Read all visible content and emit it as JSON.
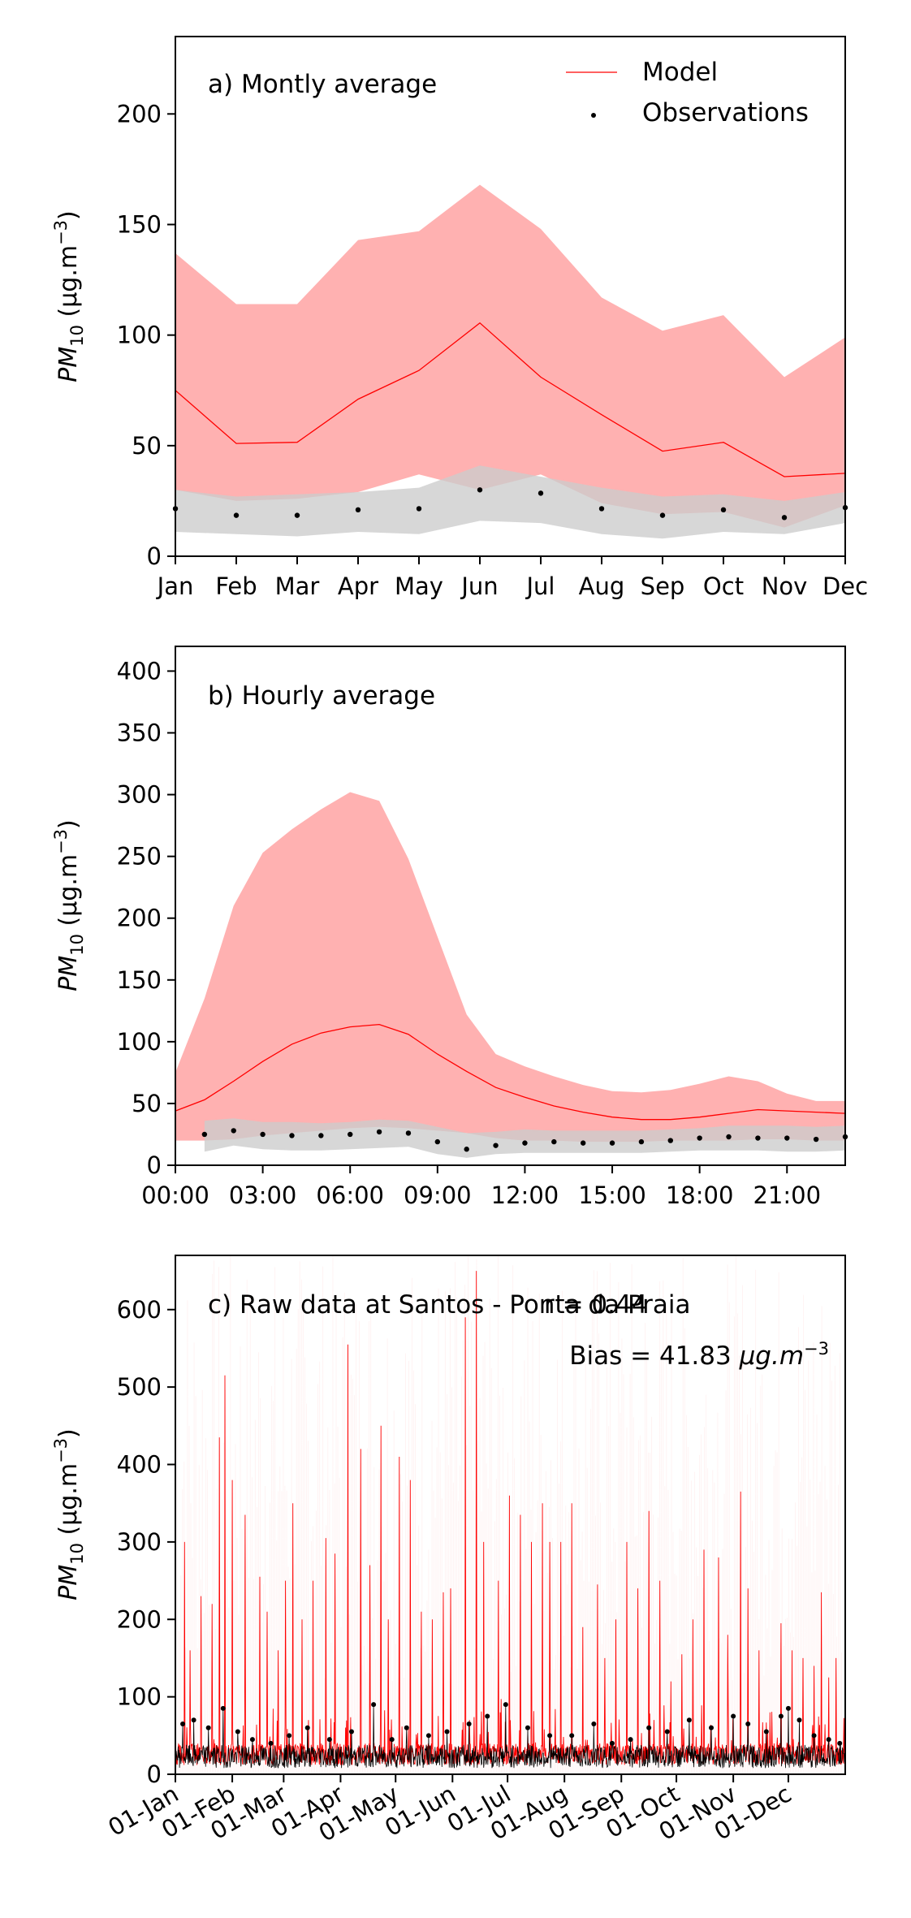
{
  "chart_data": [
    {
      "type": "line",
      "panel_label": "a) Montly average",
      "ylabel_main": "PM",
      "ylabel_sub": "10",
      "ylabel_units": " (μg.m",
      "ylabel_exp": "−3",
      "ylabel_close": ")",
      "legend_position": "top-right",
      "legend": [
        {
          "label": "Model",
          "color": "#ff0000",
          "kind": "line"
        },
        {
          "label": "Observations",
          "color": "#000000",
          "kind": "dot"
        }
      ],
      "categories": [
        "Jan",
        "Feb",
        "Mar",
        "Apr",
        "May",
        "Jun",
        "Jul",
        "Aug",
        "Sep",
        "Oct",
        "Nov",
        "Dec"
      ],
      "ylim": [
        0,
        235
      ],
      "yticks": [
        0,
        50,
        100,
        150,
        200
      ],
      "series": [
        {
          "name": "Model",
          "color": "#ff0000",
          "values": [
            75,
            51,
            51.5,
            71,
            84,
            105.5,
            81,
            64,
            47.5,
            51.5,
            36,
            37.5
          ],
          "band_upper": [
            137,
            114,
            114,
            143,
            147,
            168,
            148,
            117,
            102,
            109,
            81,
            99
          ],
          "band_lower": [
            30,
            25,
            26,
            29,
            37,
            30,
            37,
            24,
            19,
            20,
            13,
            23
          ]
        },
        {
          "name": "Observations",
          "color": "#000000",
          "values": [
            21.5,
            18.5,
            18.5,
            21,
            21.5,
            30,
            28.5,
            21.5,
            18.5,
            21,
            17.5,
            22
          ],
          "band_upper": [
            30,
            27,
            28,
            29,
            31,
            41,
            36,
            31,
            27,
            28,
            25,
            29
          ],
          "band_lower": [
            11,
            10,
            9,
            11,
            10,
            16,
            15,
            10,
            8,
            11,
            10,
            15
          ]
        }
      ]
    },
    {
      "type": "line",
      "panel_label": "b) Hourly average",
      "ylabel_main": "PM",
      "ylabel_sub": "10",
      "ylabel_units": " (μg.m",
      "ylabel_exp": "−3",
      "ylabel_close": ")",
      "x": [
        0,
        1,
        2,
        3,
        4,
        5,
        6,
        7,
        8,
        9,
        10,
        11,
        12,
        13,
        14,
        15,
        16,
        17,
        18,
        19,
        20,
        21,
        22,
        23
      ],
      "xlim": [
        0,
        23
      ],
      "xticks": [
        0,
        3,
        6,
        9,
        12,
        15,
        18,
        21
      ],
      "xticklabels": [
        "00:00",
        "03:00",
        "06:00",
        "09:00",
        "12:00",
        "15:00",
        "18:00",
        "21:00"
      ],
      "ylim": [
        0,
        420
      ],
      "yticks": [
        0,
        50,
        100,
        150,
        200,
        250,
        300,
        350,
        400
      ],
      "series": [
        {
          "name": "Model",
          "color": "#ff0000",
          "values": [
            44,
            53,
            68,
            84,
            98,
            107,
            112,
            114,
            106,
            90,
            76,
            63,
            55,
            48,
            43,
            39,
            37,
            37,
            39,
            42,
            45,
            44,
            43,
            42
          ],
          "band_upper": [
            75,
            135,
            210,
            253,
            272,
            288,
            302,
            295,
            248,
            185,
            122,
            90,
            80,
            72,
            65,
            60,
            59,
            61,
            66,
            72,
            68,
            58,
            52,
            52
          ],
          "band_lower": [
            20,
            20,
            21,
            24,
            26,
            28,
            30,
            31,
            30,
            28,
            26,
            22,
            20,
            20,
            19,
            19,
            19,
            20,
            20,
            20,
            21,
            21,
            20,
            20
          ]
        },
        {
          "name": "Observations",
          "color": "#000000",
          "values": [
            null,
            25,
            28,
            25,
            24,
            24,
            25,
            27,
            26,
            19,
            13,
            16,
            18,
            19,
            18,
            18,
            19,
            20,
            22,
            23,
            22,
            22,
            21,
            23
          ],
          "band_upper": [
            null,
            36,
            38,
            35,
            35,
            34,
            35,
            37,
            36,
            31,
            26,
            27,
            29,
            28,
            28,
            28,
            28,
            29,
            30,
            32,
            32,
            32,
            31,
            32
          ],
          "band_lower": [
            null,
            11,
            16,
            13,
            12,
            12,
            13,
            14,
            15,
            9,
            6,
            9,
            10,
            10,
            10,
            10,
            10,
            11,
            12,
            12,
            12,
            11,
            11,
            12
          ]
        }
      ]
    },
    {
      "type": "line",
      "panel_label": "c) Raw data at Santos - Ponta da Praia",
      "stat_r": "r = 0.44",
      "stat_bias_prefix": "Bias = 41.83 ",
      "stat_bias_units": "μg.m",
      "stat_bias_exp": "−3",
      "ylabel_main": "PM",
      "ylabel_sub": "10",
      "ylabel_units": " (μg.m",
      "ylabel_exp": "−3",
      "ylabel_close": ")",
      "xlim": [
        0,
        365
      ],
      "xticks": [
        0,
        31,
        59,
        90,
        120,
        151,
        181,
        212,
        243,
        273,
        304,
        334
      ],
      "xticklabels": [
        "01-Jan",
        "01-Feb",
        "01-Mar",
        "01-Apr",
        "01-May",
        "01-Jun",
        "01-Jul",
        "01-Aug",
        "01-Sep",
        "01-Oct",
        "01-Nov",
        "01-Dec"
      ],
      "ylim": [
        0,
        670
      ],
      "yticks": [
        0,
        100,
        200,
        300,
        400,
        500,
        600
      ],
      "series": [
        {
          "name": "Model",
          "color": "#ff0000",
          "peaks": [
            [
              5,
              300
            ],
            [
              8,
              160
            ],
            [
              14,
              230
            ],
            [
              20,
              220
            ],
            [
              24,
              435
            ],
            [
              27,
              515
            ],
            [
              31,
              380
            ],
            [
              38,
              335
            ],
            [
              46,
              255
            ],
            [
              50,
              210
            ],
            [
              56,
              160
            ],
            [
              60,
              250
            ],
            [
              64,
              350
            ],
            [
              69,
              200
            ],
            [
              75,
              250
            ],
            [
              82,
              305
            ],
            [
              87,
              285
            ],
            [
              94,
              555
            ],
            [
              101,
              420
            ],
            [
              106,
              270
            ],
            [
              112,
              450
            ],
            [
              116,
              200
            ],
            [
              122,
              410
            ],
            [
              128,
              380
            ],
            [
              134,
              210
            ],
            [
              140,
              200
            ],
            [
              146,
              235
            ],
            [
              150,
              240
            ],
            [
              158,
              590
            ],
            [
              164,
              650
            ],
            [
              168,
              300
            ],
            [
              176,
              250
            ],
            [
              182,
              360
            ],
            [
              188,
              335
            ],
            [
              194,
              300
            ],
            [
              200,
              350
            ],
            [
              204,
              300
            ],
            [
              210,
              300
            ],
            [
              216,
              350
            ],
            [
              222,
              190
            ],
            [
              230,
              245
            ],
            [
              234,
              150
            ],
            [
              240,
              200
            ],
            [
              246,
              300
            ],
            [
              252,
              240
            ],
            [
              258,
              340
            ],
            [
              264,
              250
            ],
            [
              270,
              120
            ],
            [
              276,
              155
            ],
            [
              282,
              200
            ],
            [
              288,
              290
            ],
            [
              296,
              280
            ],
            [
              301,
              180
            ],
            [
              308,
              365
            ],
            [
              312,
              240
            ],
            [
              318,
              160
            ],
            [
              324,
              80
            ],
            [
              330,
              195
            ],
            [
              336,
              160
            ],
            [
              342,
              150
            ],
            [
              348,
              140
            ],
            [
              352,
              235
            ],
            [
              356,
              125
            ],
            [
              360,
              150
            ]
          ]
        },
        {
          "name": "Observations",
          "color": "#000000",
          "peaks": [
            [
              4,
              65
            ],
            [
              10,
              70
            ],
            [
              18,
              60
            ],
            [
              26,
              85
            ],
            [
              34,
              55
            ],
            [
              42,
              45
            ],
            [
              52,
              40
            ],
            [
              62,
              50
            ],
            [
              72,
              60
            ],
            [
              84,
              45
            ],
            [
              96,
              55
            ],
            [
              108,
              90
            ],
            [
              118,
              45
            ],
            [
              126,
              60
            ],
            [
              138,
              50
            ],
            [
              148,
              55
            ],
            [
              160,
              65
            ],
            [
              170,
              75
            ],
            [
              180,
              90
            ],
            [
              192,
              60
            ],
            [
              204,
              50
            ],
            [
              216,
              50
            ],
            [
              228,
              65
            ],
            [
              238,
              40
            ],
            [
              248,
              45
            ],
            [
              258,
              60
            ],
            [
              268,
              55
            ],
            [
              280,
              70
            ],
            [
              292,
              60
            ],
            [
              304,
              75
            ],
            [
              312,
              65
            ],
            [
              322,
              55
            ],
            [
              330,
              75
            ],
            [
              334,
              85
            ],
            [
              340,
              70
            ],
            [
              348,
              50
            ],
            [
              356,
              45
            ],
            [
              362,
              40
            ]
          ]
        }
      ]
    }
  ]
}
